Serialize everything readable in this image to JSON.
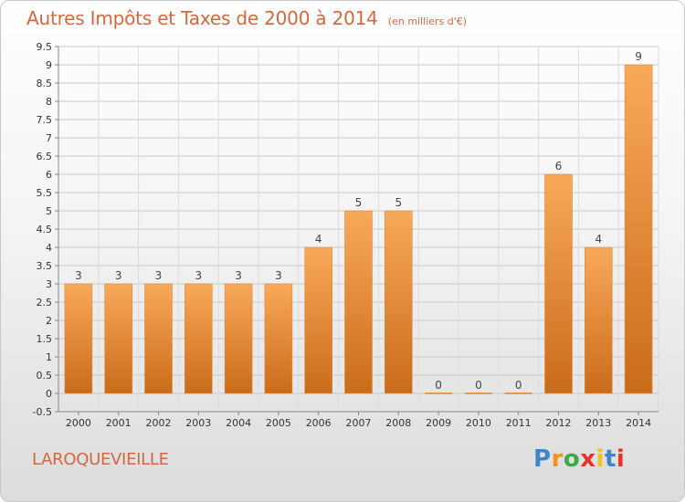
{
  "header": {
    "title": "Autres Impôts et Taxes de 2000 à 2014",
    "subtitle": "(en milliers d'€)"
  },
  "footer": {
    "commune": "LAROQUEVIEILLE",
    "brand": "Proxiti"
  },
  "colors": {
    "title": "#d5673f",
    "bar_light": "#f7a352",
    "bar_dark": "#cc6f1c",
    "grid": "#c9c9c9",
    "brand_letters": [
      "#3c86c9",
      "#f0941f",
      "#3aa84b",
      "#e6332a",
      "#f2c21b",
      "#3c86c9",
      "#e6332a"
    ]
  },
  "chart_data": {
    "type": "bar",
    "title": "Autres Impôts et Taxes de 2000 à 2014",
    "subtitle": "(en milliers d'€)",
    "categories": [
      "2000",
      "2001",
      "2002",
      "2003",
      "2004",
      "2005",
      "2006",
      "2007",
      "2008",
      "2009",
      "2010",
      "2011",
      "2012",
      "2013",
      "2014"
    ],
    "values": [
      3,
      3,
      3,
      3,
      3,
      3,
      4,
      5,
      5,
      0,
      0,
      0,
      6,
      4,
      9
    ],
    "data_labels": [
      "3",
      "3",
      "3",
      "3",
      "3",
      "3",
      "4",
      "5",
      "5",
      "0",
      "0",
      "0",
      "6",
      "4",
      "9"
    ],
    "y_ticks": [
      "-0.5",
      "0",
      "0.5",
      "1",
      "1.5",
      "2",
      "2.5",
      "3",
      "3.5",
      "4",
      "4.5",
      "5",
      "5.5",
      "6",
      "6.5",
      "7",
      "7.5",
      "8",
      "8.5",
      "9",
      "9.5"
    ],
    "ylim": [
      -0.5,
      9.5
    ],
    "xlabel": "",
    "ylabel": "",
    "grid": true
  }
}
